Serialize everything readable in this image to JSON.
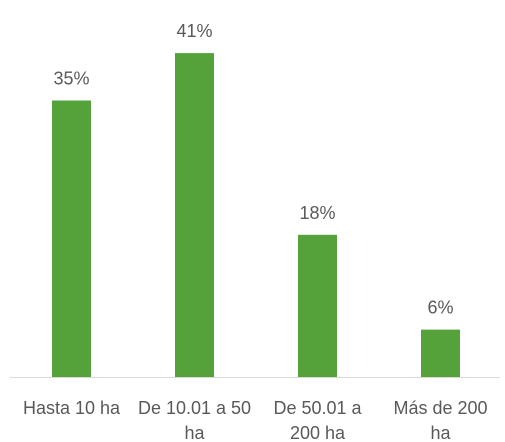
{
  "chart_data": {
    "type": "bar",
    "categories": [
      "Hasta 10 ha",
      "De 10.01 a 50 ha",
      "De 50.01 a 200 ha",
      "Más de 200 ha"
    ],
    "values": [
      35,
      41,
      18,
      6
    ],
    "value_labels": [
      "35%",
      "41%",
      "18%",
      "6%"
    ],
    "color": "#56a23a"
  }
}
